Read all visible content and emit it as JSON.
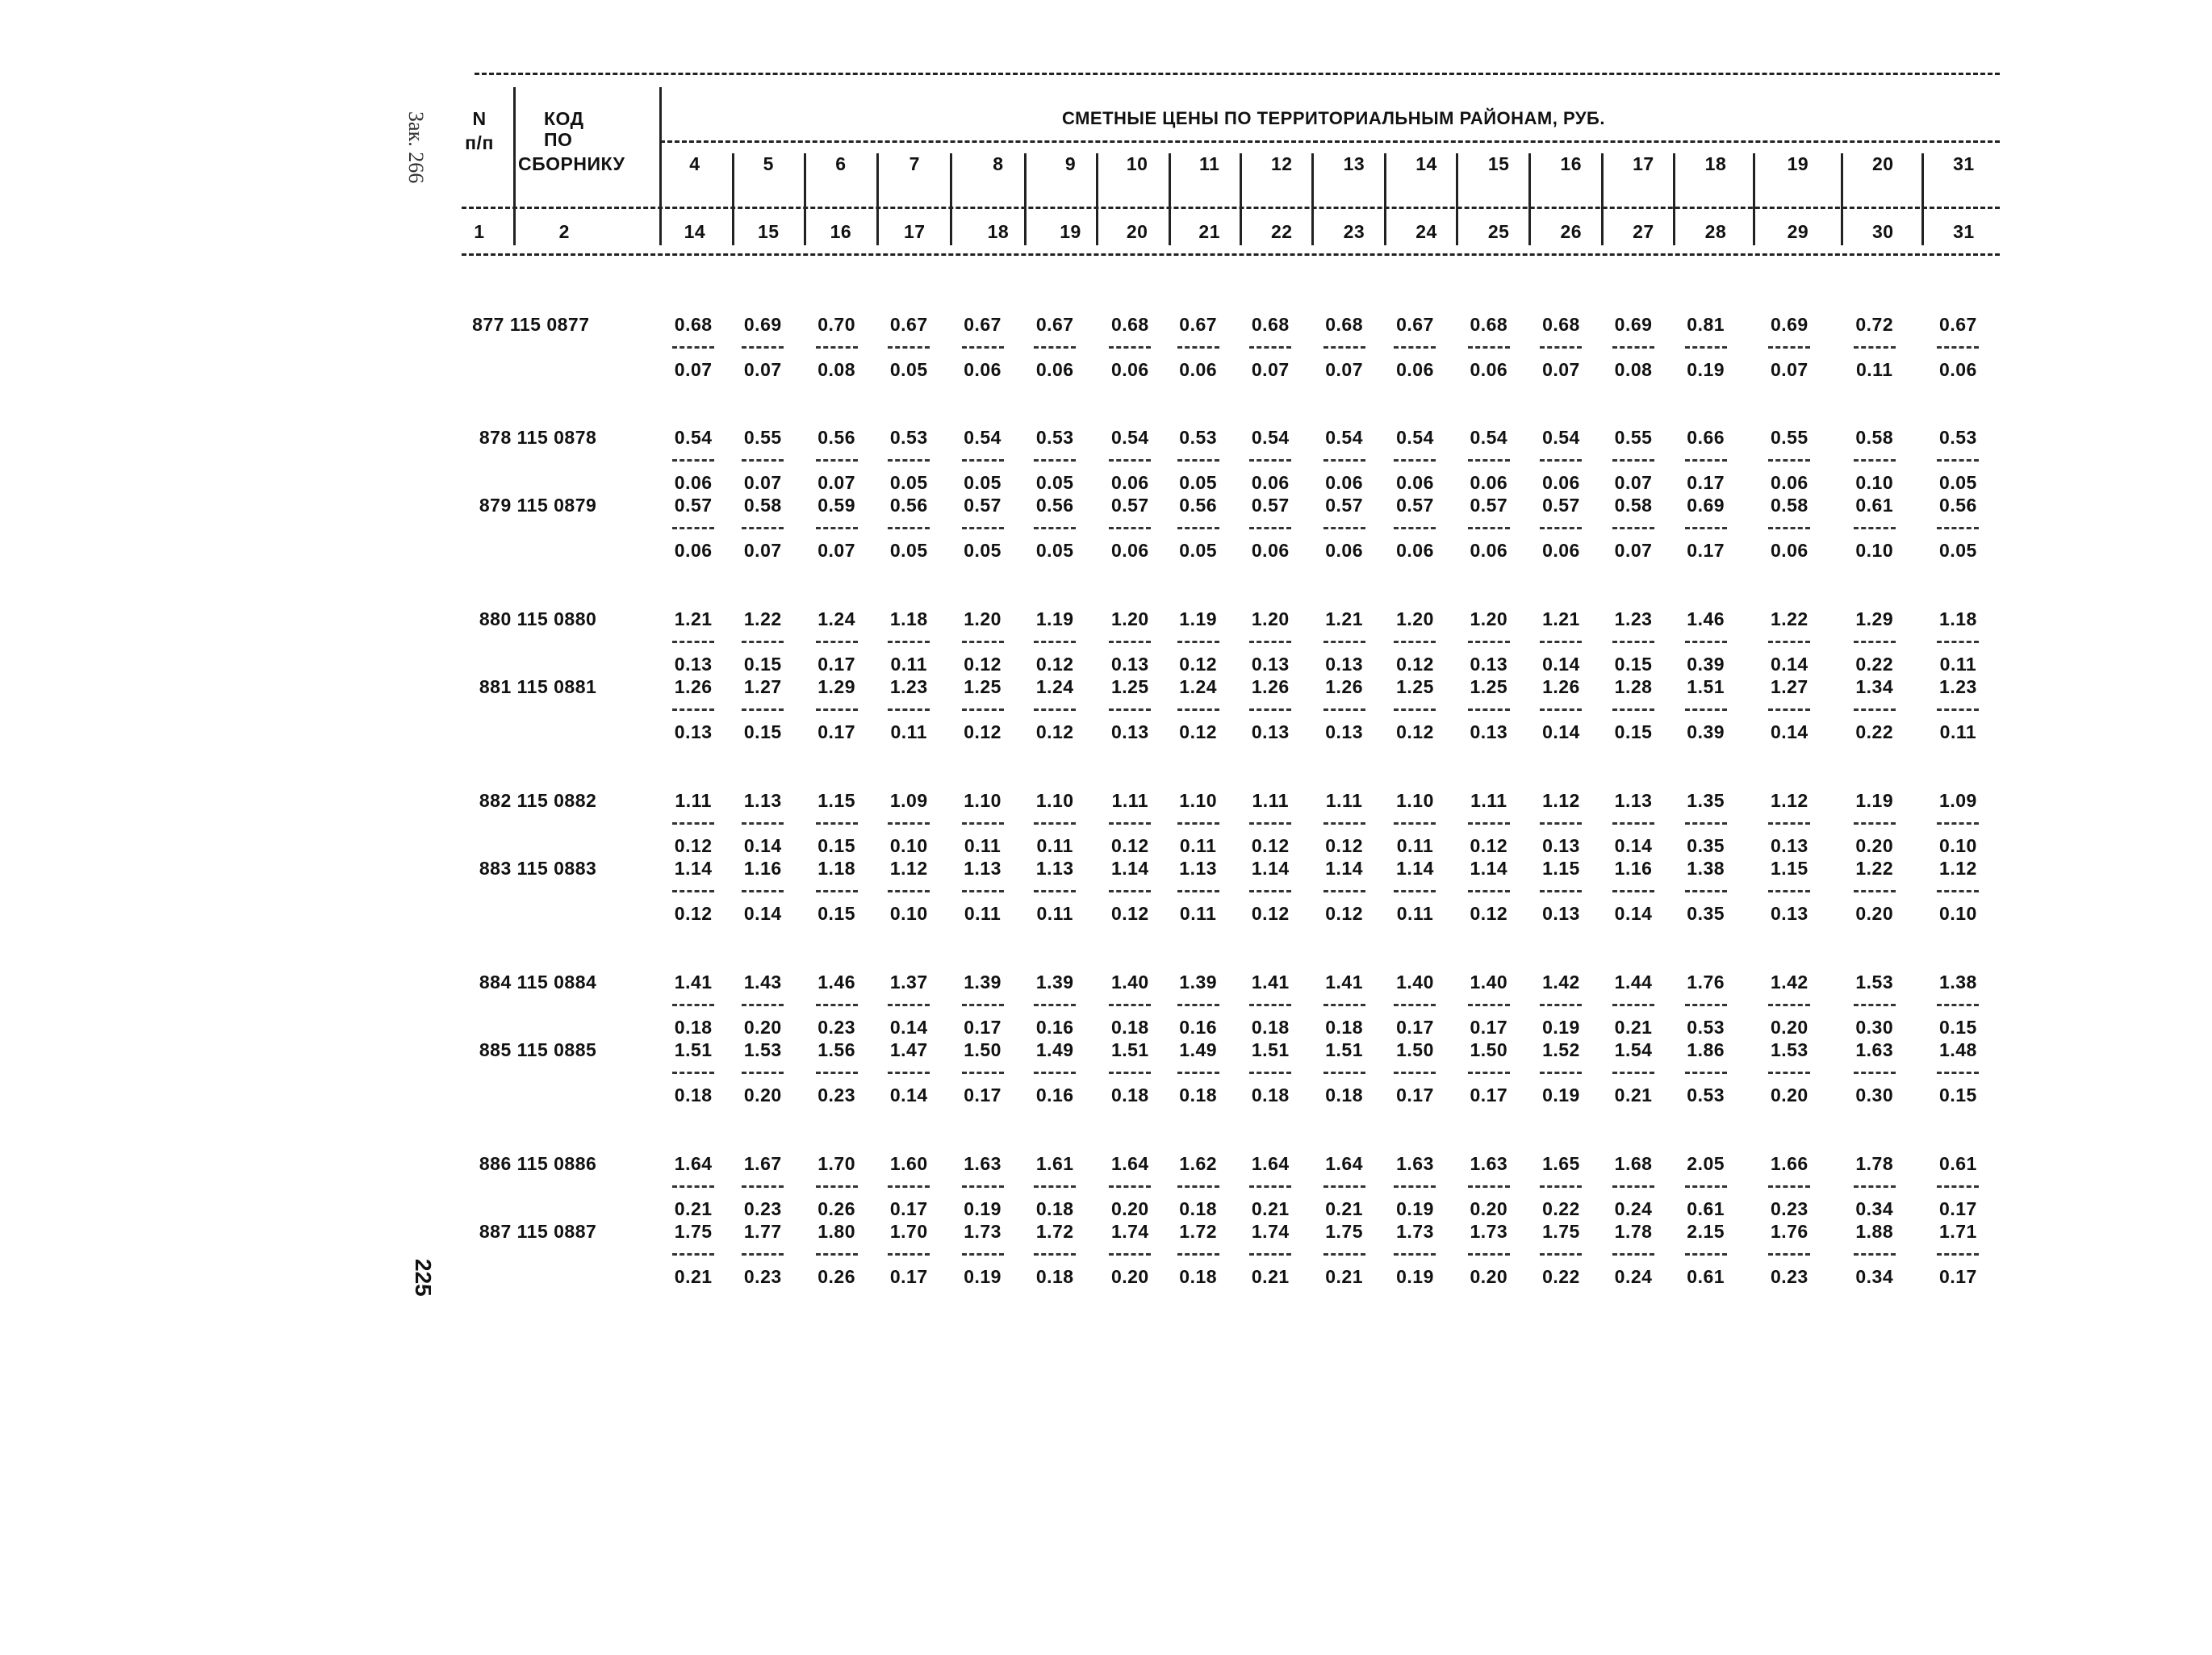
{
  "margin": {
    "order_note": "Зак. 266",
    "page_number": "225"
  },
  "header": {
    "n": "N",
    "pp": "п/п",
    "kod": "КОД",
    "po": "ПО",
    "sborniku": "СБОРНИКУ",
    "title": "СМЕТНЫЕ ЦЕНЫ ПО ТЕРРИТОРИАЛЬНЫМ РАЙОНАМ, РУБ.",
    "regions": [
      "4",
      "5",
      "6",
      "7",
      "8",
      "9",
      "10",
      "11",
      "12",
      "13",
      "14",
      "15",
      "16",
      "17",
      "18",
      "19",
      "20",
      "31"
    ],
    "col_nums_left": [
      "1",
      "2"
    ],
    "col_nums": [
      "14",
      "15",
      "16",
      "17",
      "18",
      "19",
      "20",
      "21",
      "22",
      "23",
      "24",
      "25",
      "26",
      "27",
      "28",
      "29",
      "30",
      "31"
    ]
  },
  "rows": [
    {
      "code": "877 115 0877",
      "top": [
        "0.68",
        "0.69",
        "0.70",
        "0.67",
        "0.67",
        "0.67",
        "0.68",
        "0.67",
        "0.68",
        "0.68",
        "0.67",
        "0.68",
        "0.68",
        "0.69",
        "0.81",
        "0.69",
        "0.72",
        "0.67"
      ],
      "bottom": [
        "0.07",
        "0.07",
        "0.08",
        "0.05",
        "0.06",
        "0.06",
        "0.06",
        "0.06",
        "0.07",
        "0.07",
        "0.06",
        "0.06",
        "0.07",
        "0.08",
        "0.19",
        "0.07",
        "0.11",
        "0.06"
      ]
    },
    {
      "code": "878 115 0878",
      "top": [
        "0.54",
        "0.55",
        "0.56",
        "0.53",
        "0.54",
        "0.53",
        "0.54",
        "0.53",
        "0.54",
        "0.54",
        "0.54",
        "0.54",
        "0.54",
        "0.55",
        "0.66",
        "0.55",
        "0.58",
        "0.53"
      ],
      "bottom": [
        "0.06",
        "0.07",
        "0.07",
        "0.05",
        "0.05",
        "0.05",
        "0.06",
        "0.05",
        "0.06",
        "0.06",
        "0.06",
        "0.06",
        "0.06",
        "0.07",
        "0.17",
        "0.06",
        "0.10",
        "0.05"
      ]
    },
    {
      "code": "879 115 0879",
      "top": [
        "0.57",
        "0.58",
        "0.59",
        "0.56",
        "0.57",
        "0.56",
        "0.57",
        "0.56",
        "0.57",
        "0.57",
        "0.57",
        "0.57",
        "0.57",
        "0.58",
        "0.69",
        "0.58",
        "0.61",
        "0.56"
      ],
      "bottom": [
        "0.06",
        "0.07",
        "0.07",
        "0.05",
        "0.05",
        "0.05",
        "0.06",
        "0.05",
        "0.06",
        "0.06",
        "0.06",
        "0.06",
        "0.06",
        "0.07",
        "0.17",
        "0.06",
        "0.10",
        "0.05"
      ]
    },
    {
      "code": "880 115 0880",
      "top": [
        "1.21",
        "1.22",
        "1.24",
        "1.18",
        "1.20",
        "1.19",
        "1.20",
        "1.19",
        "1.20",
        "1.21",
        "1.20",
        "1.20",
        "1.21",
        "1.23",
        "1.46",
        "1.22",
        "1.29",
        "1.18"
      ],
      "bottom": [
        "0.13",
        "0.15",
        "0.17",
        "0.11",
        "0.12",
        "0.12",
        "0.13",
        "0.12",
        "0.13",
        "0.13",
        "0.12",
        "0.13",
        "0.14",
        "0.15",
        "0.39",
        "0.14",
        "0.22",
        "0.11"
      ]
    },
    {
      "code": "881 115 0881",
      "top": [
        "1.26",
        "1.27",
        "1.29",
        "1.23",
        "1.25",
        "1.24",
        "1.25",
        "1.24",
        "1.26",
        "1.26",
        "1.25",
        "1.25",
        "1.26",
        "1.28",
        "1.51",
        "1.27",
        "1.34",
        "1.23"
      ],
      "bottom": [
        "0.13",
        "0.15",
        "0.17",
        "0.11",
        "0.12",
        "0.12",
        "0.13",
        "0.12",
        "0.13",
        "0.13",
        "0.12",
        "0.13",
        "0.14",
        "0.15",
        "0.39",
        "0.14",
        "0.22",
        "0.11"
      ]
    },
    {
      "code": "882 115 0882",
      "top": [
        "1.11",
        "1.13",
        "1.15",
        "1.09",
        "1.10",
        "1.10",
        "1.11",
        "1.10",
        "1.11",
        "1.11",
        "1.10",
        "1.11",
        "1.12",
        "1.13",
        "1.35",
        "1.12",
        "1.19",
        "1.09"
      ],
      "bottom": [
        "0.12",
        "0.14",
        "0.15",
        "0.10",
        "0.11",
        "0.11",
        "0.12",
        "0.11",
        "0.12",
        "0.12",
        "0.11",
        "0.12",
        "0.13",
        "0.14",
        "0.35",
        "0.13",
        "0.20",
        "0.10"
      ]
    },
    {
      "code": "883 115 0883",
      "top": [
        "1.14",
        "1.16",
        "1.18",
        "1.12",
        "1.13",
        "1.13",
        "1.14",
        "1.13",
        "1.14",
        "1.14",
        "1.14",
        "1.14",
        "1.15",
        "1.16",
        "1.38",
        "1.15",
        "1.22",
        "1.12"
      ],
      "bottom": [
        "0.12",
        "0.14",
        "0.15",
        "0.10",
        "0.11",
        "0.11",
        "0.12",
        "0.11",
        "0.12",
        "0.12",
        "0.11",
        "0.12",
        "0.13",
        "0.14",
        "0.35",
        "0.13",
        "0.20",
        "0.10"
      ]
    },
    {
      "code": "884 115 0884",
      "top": [
        "1.41",
        "1.43",
        "1.46",
        "1.37",
        "1.39",
        "1.39",
        "1.40",
        "1.39",
        "1.41",
        "1.41",
        "1.40",
        "1.40",
        "1.42",
        "1.44",
        "1.76",
        "1.42",
        "1.53",
        "1.38"
      ],
      "bottom": [
        "0.18",
        "0.20",
        "0.23",
        "0.14",
        "0.17",
        "0.16",
        "0.18",
        "0.16",
        "0.18",
        "0.18",
        "0.17",
        "0.17",
        "0.19",
        "0.21",
        "0.53",
        "0.20",
        "0.30",
        "0.15"
      ]
    },
    {
      "code": "885 115 0885",
      "top": [
        "1.51",
        "1.53",
        "1.56",
        "1.47",
        "1.50",
        "1.49",
        "1.51",
        "1.49",
        "1.51",
        "1.51",
        "1.50",
        "1.50",
        "1.52",
        "1.54",
        "1.86",
        "1.53",
        "1.63",
        "1.48"
      ],
      "bottom": [
        "0.18",
        "0.20",
        "0.23",
        "0.14",
        "0.17",
        "0.16",
        "0.18",
        "0.18",
        "0.18",
        "0.18",
        "0.17",
        "0.17",
        "0.19",
        "0.21",
        "0.53",
        "0.20",
        "0.30",
        "0.15"
      ]
    },
    {
      "code": "886 115 0886",
      "top": [
        "1.64",
        "1.67",
        "1.70",
        "1.60",
        "1.63",
        "1.61",
        "1.64",
        "1.62",
        "1.64",
        "1.64",
        "1.63",
        "1.63",
        "1.65",
        "1.68",
        "2.05",
        "1.66",
        "1.78",
        "0.61"
      ],
      "bottom": [
        "0.21",
        "0.23",
        "0.26",
        "0.17",
        "0.19",
        "0.18",
        "0.20",
        "0.18",
        "0.21",
        "0.21",
        "0.19",
        "0.20",
        "0.22",
        "0.24",
        "0.61",
        "0.23",
        "0.34",
        "0.17"
      ]
    },
    {
      "code": "887 115 0887",
      "top": [
        "1.75",
        "1.77",
        "1.80",
        "1.70",
        "1.73",
        "1.72",
        "1.74",
        "1.72",
        "1.74",
        "1.75",
        "1.73",
        "1.73",
        "1.75",
        "1.78",
        "2.15",
        "1.76",
        "1.88",
        "1.71"
      ],
      "bottom": [
        "0.21",
        "0.23",
        "0.26",
        "0.17",
        "0.19",
        "0.18",
        "0.20",
        "0.18",
        "0.21",
        "0.21",
        "0.19",
        "0.20",
        "0.22",
        "0.24",
        "0.61",
        "0.23",
        "0.34",
        "0.17"
      ]
    }
  ]
}
